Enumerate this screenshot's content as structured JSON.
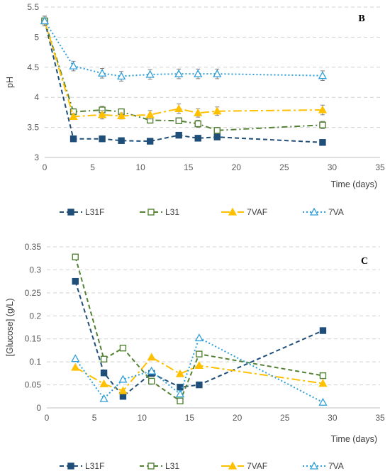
{
  "chart_data": [
    {
      "type": "line",
      "panel_label": "B",
      "ylabel": "pH",
      "xlabel": "Time (days)",
      "xlim": [
        0,
        35
      ],
      "ylim": [
        3,
        5.5
      ],
      "x_ticks": [
        "0",
        "5",
        "10",
        "15",
        "20",
        "25",
        "30",
        "35"
      ],
      "y_ticks": [
        "3",
        "3.5",
        "4",
        "4.5",
        "5",
        "5.5"
      ],
      "grid": "horizontal dashed",
      "legend_position": "bottom",
      "series": [
        {
          "name": "L31F",
          "color": "#1f4e79",
          "dash": "dashed",
          "marker": "square-filled",
          "x": [
            0,
            3,
            6,
            8,
            11,
            14,
            16,
            18,
            29
          ],
          "y": [
            5.27,
            3.31,
            3.31,
            3.28,
            3.27,
            3.37,
            3.32,
            3.34,
            3.25
          ],
          "err": [
            0.08,
            0.04,
            0.04,
            0.04,
            0.04,
            0.04,
            0.04,
            0.04,
            0.05
          ]
        },
        {
          "name": "L31",
          "color": "#548235",
          "dash": "dash-dot",
          "marker": "square-open",
          "x": [
            0,
            3,
            6,
            8,
            11,
            14,
            16,
            18,
            29
          ],
          "y": [
            5.27,
            3.76,
            3.79,
            3.76,
            3.62,
            3.61,
            3.56,
            3.45,
            3.54
          ],
          "err": [
            0.08,
            0.05,
            0.06,
            0.05,
            0.05,
            0.05,
            0.06,
            0.05,
            0.06
          ]
        },
        {
          "name": "7VAF",
          "color": "#ffc000",
          "dash": "long-dash-dot",
          "marker": "triangle-filled",
          "x": [
            0,
            3,
            6,
            8,
            11,
            14,
            16,
            18,
            29
          ],
          "y": [
            5.27,
            3.68,
            3.71,
            3.69,
            3.71,
            3.81,
            3.74,
            3.77,
            3.79
          ],
          "err": [
            0.08,
            0.05,
            0.07,
            0.05,
            0.07,
            0.08,
            0.07,
            0.07,
            0.08
          ]
        },
        {
          "name": "7VA",
          "color": "#2e9fd8",
          "dash": "dotted",
          "marker": "triangle-open",
          "x": [
            0,
            3,
            6,
            8,
            11,
            14,
            16,
            18,
            29
          ],
          "y": [
            5.27,
            4.52,
            4.4,
            4.35,
            4.38,
            4.39,
            4.39,
            4.39,
            4.36
          ],
          "err": [
            0.08,
            0.08,
            0.08,
            0.08,
            0.08,
            0.08,
            0.08,
            0.08,
            0.08
          ]
        }
      ]
    },
    {
      "type": "line",
      "panel_label": "C",
      "ylabel": "[Glucose] (g/L)",
      "xlabel": "Time (days)",
      "xlim": [
        0,
        35
      ],
      "ylim": [
        0,
        0.35
      ],
      "x_ticks": [
        "0",
        "5",
        "10",
        "15",
        "20",
        "25",
        "30",
        "35"
      ],
      "y_ticks": [
        "0",
        "0.05",
        "0.1",
        "0.15",
        "0.2",
        "0.25",
        "0.3",
        "0.35"
      ],
      "grid": "horizontal dashed",
      "legend_position": "bottom",
      "series": [
        {
          "name": "L31F",
          "color": "#1f4e79",
          "dash": "dashed",
          "marker": "square-filled",
          "x": [
            3,
            6,
            8,
            11,
            14,
            16,
            29
          ],
          "y": [
            0.275,
            0.076,
            0.025,
            0.075,
            0.045,
            0.05,
            0.168
          ]
        },
        {
          "name": "L31",
          "color": "#548235",
          "dash": "dashed",
          "marker": "square-open",
          "x": [
            3,
            6,
            8,
            11,
            14,
            16,
            29
          ],
          "y": [
            0.328,
            0.106,
            0.13,
            0.058,
            0.015,
            0.117,
            0.07
          ]
        },
        {
          "name": "7VAF",
          "color": "#ffc000",
          "dash": "long-dash-dot",
          "marker": "triangle-filled",
          "x": [
            3,
            6,
            8,
            11,
            14,
            16,
            29
          ],
          "y": [
            0.088,
            0.052,
            0.037,
            0.11,
            0.074,
            0.092,
            0.053
          ]
        },
        {
          "name": "7VA",
          "color": "#2e9fd8",
          "dash": "dotted",
          "marker": "triangle-open",
          "x": [
            3,
            6,
            8,
            11,
            14,
            16,
            29
          ],
          "y": [
            0.107,
            0.02,
            0.062,
            0.08,
            0.03,
            0.152,
            0.012
          ]
        }
      ]
    }
  ]
}
